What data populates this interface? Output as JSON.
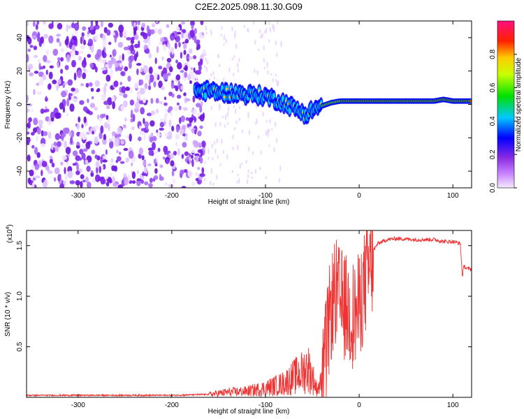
{
  "title": "C2E2.2025.098.11.30.G09",
  "colors": {
    "trace": "#ee3333",
    "noise": "#7a1ee8",
    "axis": "#000000"
  },
  "chart_data": [
    {
      "type": "heatmap",
      "xlabel": "Height of straight line (km)",
      "ylabel": "Frequency (Hz)",
      "xlim": [
        -355,
        120
      ],
      "ylim": [
        -50,
        50
      ],
      "x_ticks": [
        -300,
        -200,
        -100,
        0,
        100
      ],
      "y_ticks": [
        -40,
        -20,
        0,
        20,
        40
      ],
      "colorbar": {
        "label": "Normalized spectral amplitude",
        "ticks": [
          "0.0",
          "0.2",
          "0.4",
          "0.6",
          "0.8"
        ],
        "tick_values": [
          0.0,
          0.2,
          0.4,
          0.6,
          0.8
        ],
        "range": [
          0,
          1
        ]
      },
      "signal_ridge": {
        "x": [
          -175,
          -160,
          -140,
          -120,
          -100,
          -90,
          -80,
          -70,
          -60,
          -55,
          -50,
          -45,
          -40,
          -30,
          -20,
          -10,
          0,
          20,
          50,
          80,
          90,
          100,
          120
        ],
        "freq": [
          8,
          8,
          7,
          6,
          5,
          3,
          1,
          -2,
          -5,
          -6,
          -3,
          -2,
          -1,
          1,
          2,
          2,
          2,
          2,
          2,
          2,
          3,
          2,
          2
        ]
      },
      "noise_region_x": [
        -355,
        -165
      ]
    },
    {
      "type": "line",
      "xlabel": "Height of straight line (km)",
      "ylabel": "SNR (10 * v/v)",
      "multiplier": "(x10",
      "multiplier_exp": "4",
      "multiplier_close": ")",
      "xlim": [
        -355,
        120
      ],
      "ylim": [
        0,
        1.65
      ],
      "x_ticks": [
        -300,
        -200,
        -100,
        0,
        100
      ],
      "y_ticks": [
        "0.5",
        "1.0",
        "1.5"
      ],
      "y_tick_values": [
        0.5,
        1.0,
        1.5
      ],
      "series": [
        {
          "x": [
            -355,
            -200,
            -160,
            -140,
            -120,
            -100,
            -80,
            -70,
            -60,
            -55,
            -50,
            -45,
            -40,
            -35,
            -30,
            -25,
            -20,
            -15,
            -10,
            -5,
            0,
            5,
            10,
            15,
            20,
            30,
            40,
            60,
            80,
            90,
            100,
            108,
            110,
            112,
            115,
            120
          ],
          "y": [
            0.02,
            0.02,
            0.03,
            0.05,
            0.06,
            0.09,
            0.14,
            0.2,
            0.25,
            0.3,
            0.2,
            0.08,
            0.15,
            0.6,
            1.0,
            1.15,
            1.05,
            1.0,
            0.95,
            0.92,
            1.0,
            1.2,
            1.35,
            1.45,
            1.52,
            1.56,
            1.57,
            1.56,
            1.56,
            1.54,
            1.54,
            1.52,
            1.2,
            1.3,
            1.27,
            1.27
          ]
        }
      ]
    }
  ]
}
